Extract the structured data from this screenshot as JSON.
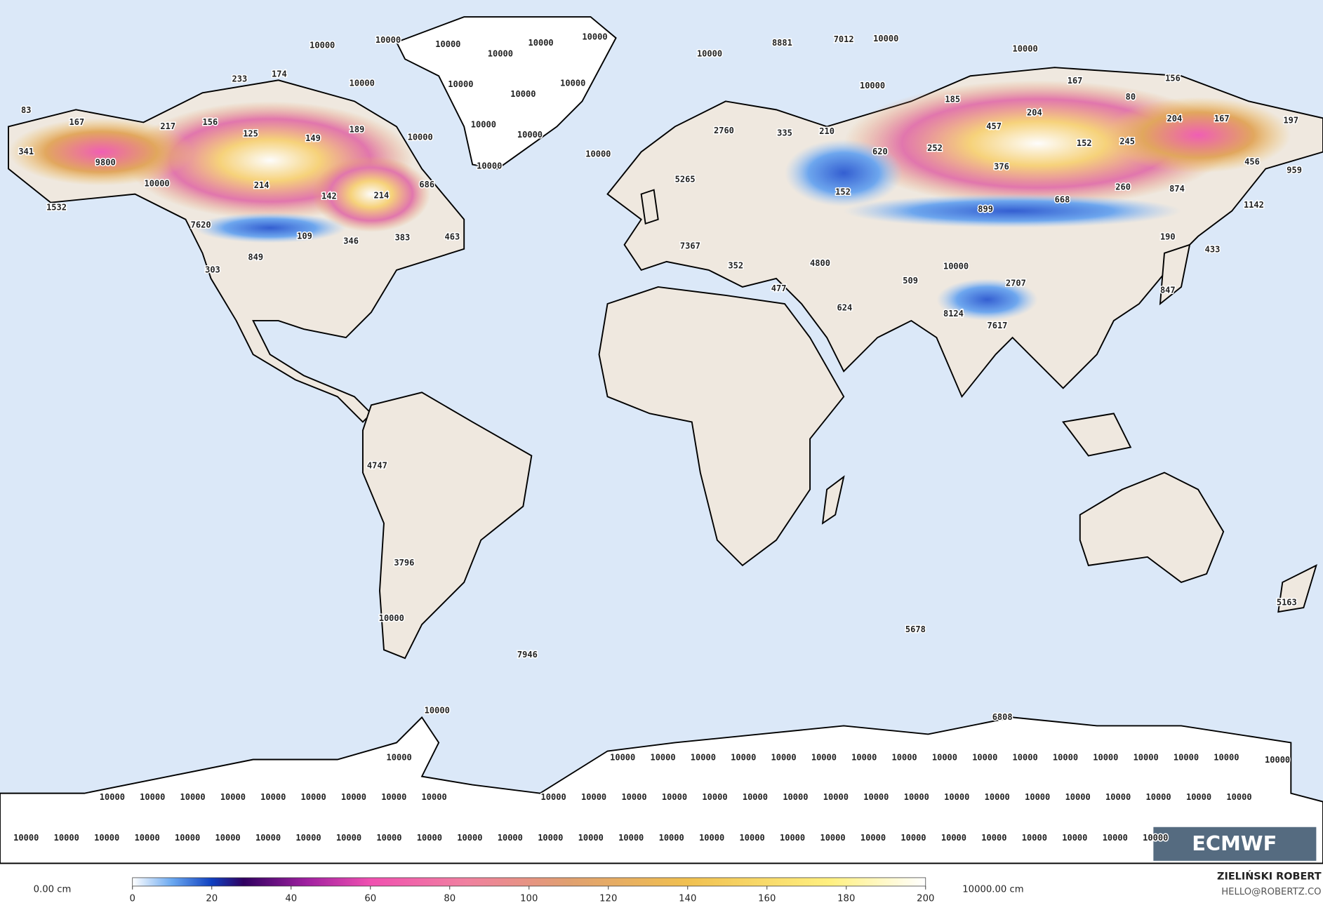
{
  "map_labels": [
    83,
    167,
    217,
    156,
    125,
    149,
    189,
    233,
    174,
    10000,
    10000,
    10000,
    10000,
    10000,
    10000,
    10000,
    10000,
    10000,
    10000,
    10000,
    10000,
    10000,
    10000,
    10000,
    341,
    9800,
    10000,
    1532,
    214,
    142,
    214,
    686,
    7620,
    109,
    346,
    383,
    463,
    849,
    303,
    10000,
    8881,
    7012,
    10000,
    10000,
    10000,
    167,
    156,
    185,
    80,
    204,
    204,
    167,
    197,
    457,
    2760,
    335,
    210,
    620,
    252,
    152,
    245,
    376,
    456,
    959,
    5265,
    152,
    668,
    260,
    874,
    1142,
    899,
    190,
    433,
    7367,
    4800,
    509,
    10000,
    352,
    2707,
    477,
    624,
    847,
    8124,
    7617,
    4747,
    3796,
    10000,
    7946,
    5678,
    5163,
    10000,
    6808,
    10000
  ],
  "antarctic_rows": [
    [
      10000,
      10000,
      10000,
      10000,
      10000,
      10000,
      10000,
      10000,
      10000,
      10000,
      10000,
      10000,
      10000,
      10000,
      10000,
      10000,
      10000
    ],
    [
      10000,
      10000,
      10000,
      10000,
      10000,
      10000,
      10000,
      10000,
      10000,
      10000,
      10000,
      10000,
      10000,
      10000,
      10000,
      10000,
      10000,
      10000,
      10000,
      10000,
      10000,
      10000,
      10000,
      10000,
      10000,
      10000,
      10000
    ],
    [
      10000,
      10000,
      10000,
      10000,
      10000,
      10000,
      10000,
      10000,
      10000,
      10000,
      10000,
      10000,
      10000,
      10000,
      10000,
      10000,
      10000,
      10000,
      10000,
      10000,
      10000,
      10000,
      10000,
      10000,
      10000,
      10000,
      10000,
      10000,
      10000
    ]
  ],
  "colorbar": {
    "ticks": [
      0,
      20,
      40,
      60,
      80,
      100,
      120,
      140,
      160,
      180,
      200
    ],
    "min_label": "0.00 cm",
    "max_label": "10000.00 cm"
  },
  "logo": "ECMWF",
  "credit": {
    "name": "ZIELIŃSKI ROBERT",
    "contact": "HELLO@ROBERTZ.CO"
  }
}
